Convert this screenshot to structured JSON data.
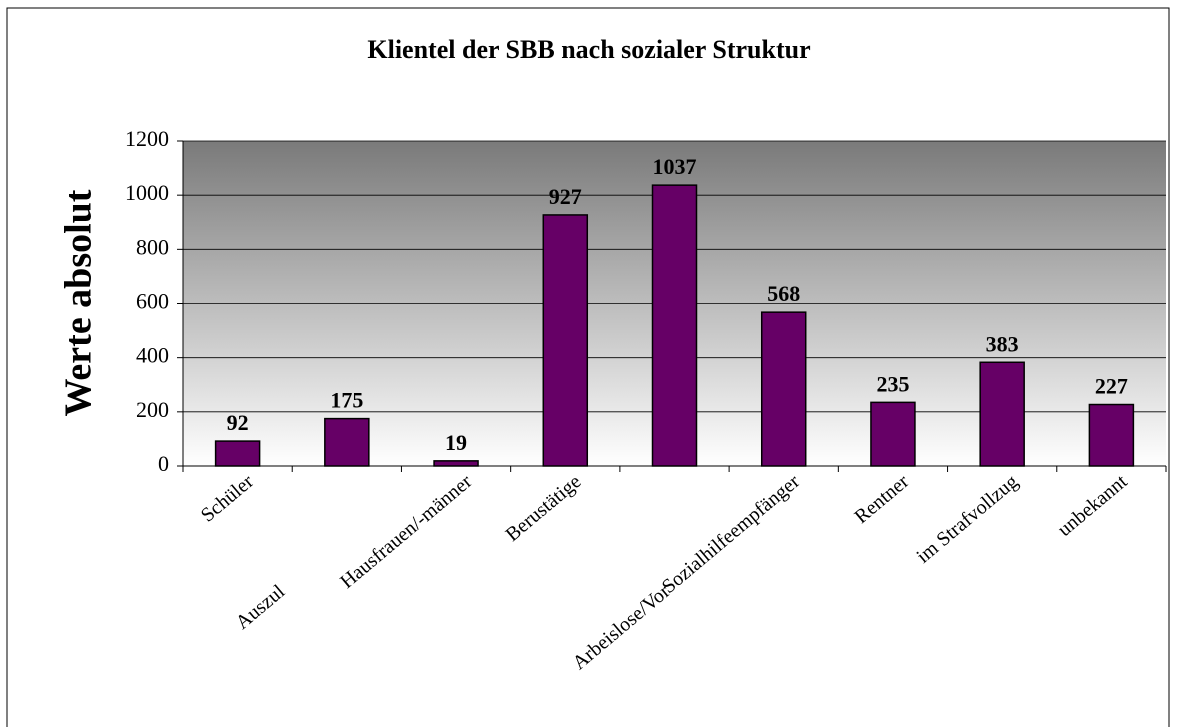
{
  "chart_data": {
    "type": "bar",
    "title": "Klientel der SBB nach sozialer Struktur",
    "y_label": "Werte absolut",
    "categories": [
      "Schüler",
      "Auszul",
      "Hausfrauen/-männer",
      "Berustätige",
      "Arbeislose/Vor",
      "Sozialhilfeempfänger",
      "Rentner",
      "im Strafvollzug",
      "unbekannt"
    ],
    "values": [
      92,
      175,
      19,
      927,
      1037,
      568,
      235,
      383,
      227
    ],
    "color": "#660066",
    "ylim": [
      0,
      1200
    ],
    "yticks": [
      0,
      200,
      400,
      600,
      800,
      1000,
      1200
    ],
    "grid": true
  }
}
